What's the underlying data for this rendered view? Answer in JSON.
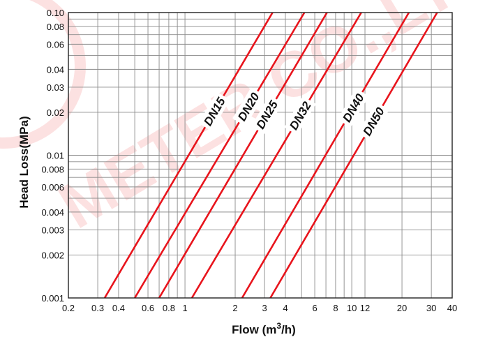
{
  "chart_data": {
    "type": "line",
    "title": "",
    "xlabel": "Flow (m³/h)",
    "xlabel_parts": {
      "base": "Flow (m",
      "sup": "3",
      "tail": "/h)"
    },
    "ylabel": "Head Loss(MPa)",
    "x_scale": "log",
    "y_scale": "log",
    "xlim": [
      0.2,
      40
    ],
    "ylim": [
      0.001,
      0.1
    ],
    "grid": true,
    "legend": "none",
    "x_ticks": [
      {
        "value": 0.2,
        "label": "0.2"
      },
      {
        "value": 0.3,
        "label": "0.3"
      },
      {
        "value": 0.4,
        "label": "0.4"
      },
      {
        "value": 0.6,
        "label": "0.6"
      },
      {
        "value": 0.8,
        "label": "0.8"
      },
      {
        "value": 1,
        "label": "1"
      },
      {
        "value": 2,
        "label": "2"
      },
      {
        "value": 3,
        "label": "3"
      },
      {
        "value": 4,
        "label": "4"
      },
      {
        "value": 6,
        "label": "6"
      },
      {
        "value": 8,
        "label": "8"
      },
      {
        "value": 10,
        "label": "10"
      },
      {
        "value": 12,
        "label": "12"
      },
      {
        "value": 20,
        "label": "20"
      },
      {
        "value": 30,
        "label": "30"
      },
      {
        "value": 40,
        "label": "40"
      }
    ],
    "y_ticks": [
      {
        "value": 0.001,
        "label": "0.001"
      },
      {
        "value": 0.002,
        "label": "0.002"
      },
      {
        "value": 0.003,
        "label": "0.003"
      },
      {
        "value": 0.004,
        "label": "0.004"
      },
      {
        "value": 0.006,
        "label": "0.006"
      },
      {
        "value": 0.008,
        "label": "0.008"
      },
      {
        "value": 0.01,
        "label": "0.01"
      },
      {
        "value": 0.02,
        "label": "0.02"
      },
      {
        "value": 0.03,
        "label": "0.03"
      },
      {
        "value": 0.04,
        "label": "0.04"
      },
      {
        "value": 0.06,
        "label": "0.06"
      },
      {
        "value": 0.08,
        "label": "0.08"
      },
      {
        "value": 0.1,
        "label": "0.10"
      }
    ],
    "x_grid": [
      0.2,
      0.3,
      0.4,
      0.5,
      0.6,
      0.7,
      0.8,
      0.9,
      1,
      2,
      3,
      4,
      5,
      6,
      7,
      8,
      9,
      10,
      12,
      20,
      30,
      40
    ],
    "y_grid": [
      0.001,
      0.002,
      0.003,
      0.004,
      0.005,
      0.006,
      0.007,
      0.008,
      0.009,
      0.01,
      0.02,
      0.03,
      0.04,
      0.05,
      0.06,
      0.07,
      0.08,
      0.09,
      0.1
    ],
    "series": [
      {
        "name": "DN15",
        "color": "#e8141c",
        "points": [
          [
            0.33,
            0.001
          ],
          [
            3.35,
            0.1
          ]
        ],
        "label_at": 1.5
      },
      {
        "name": "DN20",
        "color": "#e8141c",
        "points": [
          [
            0.5,
            0.001
          ],
          [
            5.2,
            0.1
          ]
        ],
        "label_at": 2.4
      },
      {
        "name": "DN25",
        "color": "#e8141c",
        "points": [
          [
            0.7,
            0.001
          ],
          [
            7.1,
            0.1
          ]
        ],
        "label_at": 3.1
      },
      {
        "name": "DN32",
        "color": "#e8141c",
        "points": [
          [
            1.1,
            0.001
          ],
          [
            11.4,
            0.1
          ]
        ],
        "label_at": 4.9
      },
      {
        "name": "DN40",
        "color": "#e8141c",
        "points": [
          [
            2.2,
            0.001
          ],
          [
            22,
            0.1
          ]
        ],
        "label_at": 10.2
      },
      {
        "name": "DN50",
        "color": "#e8141c",
        "points": [
          [
            3.25,
            0.001
          ],
          [
            32.5,
            0.1
          ]
        ],
        "label_at": 13.5
      }
    ],
    "watermark": "METER CO.,LTD",
    "watermark_color": "#ee2222"
  }
}
